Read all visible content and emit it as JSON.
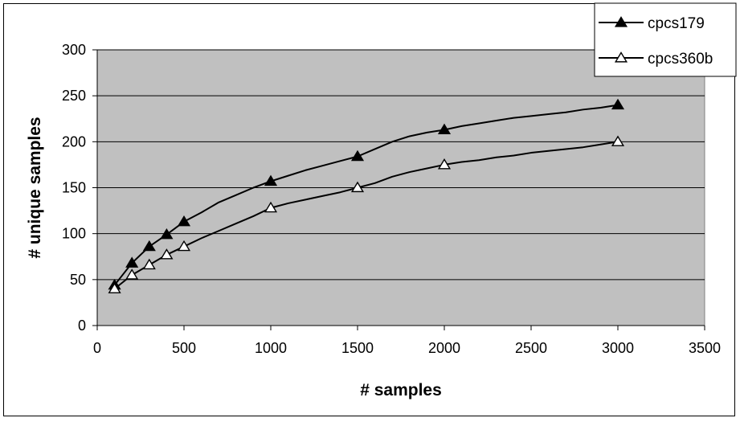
{
  "chart_data": {
    "type": "line",
    "title": "",
    "xlabel": "# samples",
    "ylabel": "# unique samples",
    "xlim": [
      0,
      3500
    ],
    "ylim": [
      0,
      300
    ],
    "x_ticks": [
      0,
      500,
      1000,
      1500,
      2000,
      2500,
      3000,
      3500
    ],
    "y_ticks": [
      0,
      50,
      100,
      150,
      200,
      250,
      300
    ],
    "grid": "horizontal",
    "plot_background": "#c0c0c0",
    "legend": "top-right",
    "series": [
      {
        "name": "cpcs179",
        "marker": "filled-triangle",
        "markers_x": [
          100,
          200,
          300,
          400,
          500,
          1000,
          1500,
          2000,
          3000
        ],
        "markers_y": [
          44,
          68,
          86,
          99,
          113,
          157,
          184,
          213,
          240
        ],
        "x": [
          100,
          200,
          300,
          400,
          500,
          600,
          700,
          800,
          900,
          1000,
          1100,
          1200,
          1300,
          1400,
          1500,
          1600,
          1700,
          1800,
          1900,
          2000,
          2100,
          2200,
          2300,
          2400,
          2500,
          2600,
          2700,
          2800,
          2900,
          3000
        ],
        "y": [
          44,
          68,
          86,
          99,
          113,
          123,
          134,
          142,
          150,
          157,
          163,
          169,
          174,
          179,
          184,
          192,
          200,
          206,
          210,
          213,
          217,
          220,
          223,
          226,
          228,
          230,
          232,
          235,
          237,
          240
        ]
      },
      {
        "name": "cpcs360b",
        "marker": "open-triangle",
        "markers_x": [
          100,
          200,
          300,
          400,
          500,
          1000,
          1500,
          2000,
          3000
        ],
        "markers_y": [
          40,
          55,
          66,
          77,
          86,
          128,
          150,
          175,
          200
        ],
        "x": [
          100,
          200,
          300,
          400,
          500,
          600,
          700,
          800,
          900,
          1000,
          1100,
          1200,
          1300,
          1400,
          1500,
          1600,
          1700,
          1800,
          1900,
          2000,
          2100,
          2200,
          2300,
          2400,
          2500,
          2600,
          2700,
          2800,
          2900,
          3000
        ],
        "y": [
          40,
          55,
          66,
          77,
          86,
          95,
          103,
          111,
          119,
          128,
          133,
          137,
          141,
          145,
          150,
          155,
          162,
          167,
          171,
          175,
          178,
          180,
          183,
          185,
          188,
          190,
          192,
          194,
          197,
          200
        ]
      }
    ]
  }
}
